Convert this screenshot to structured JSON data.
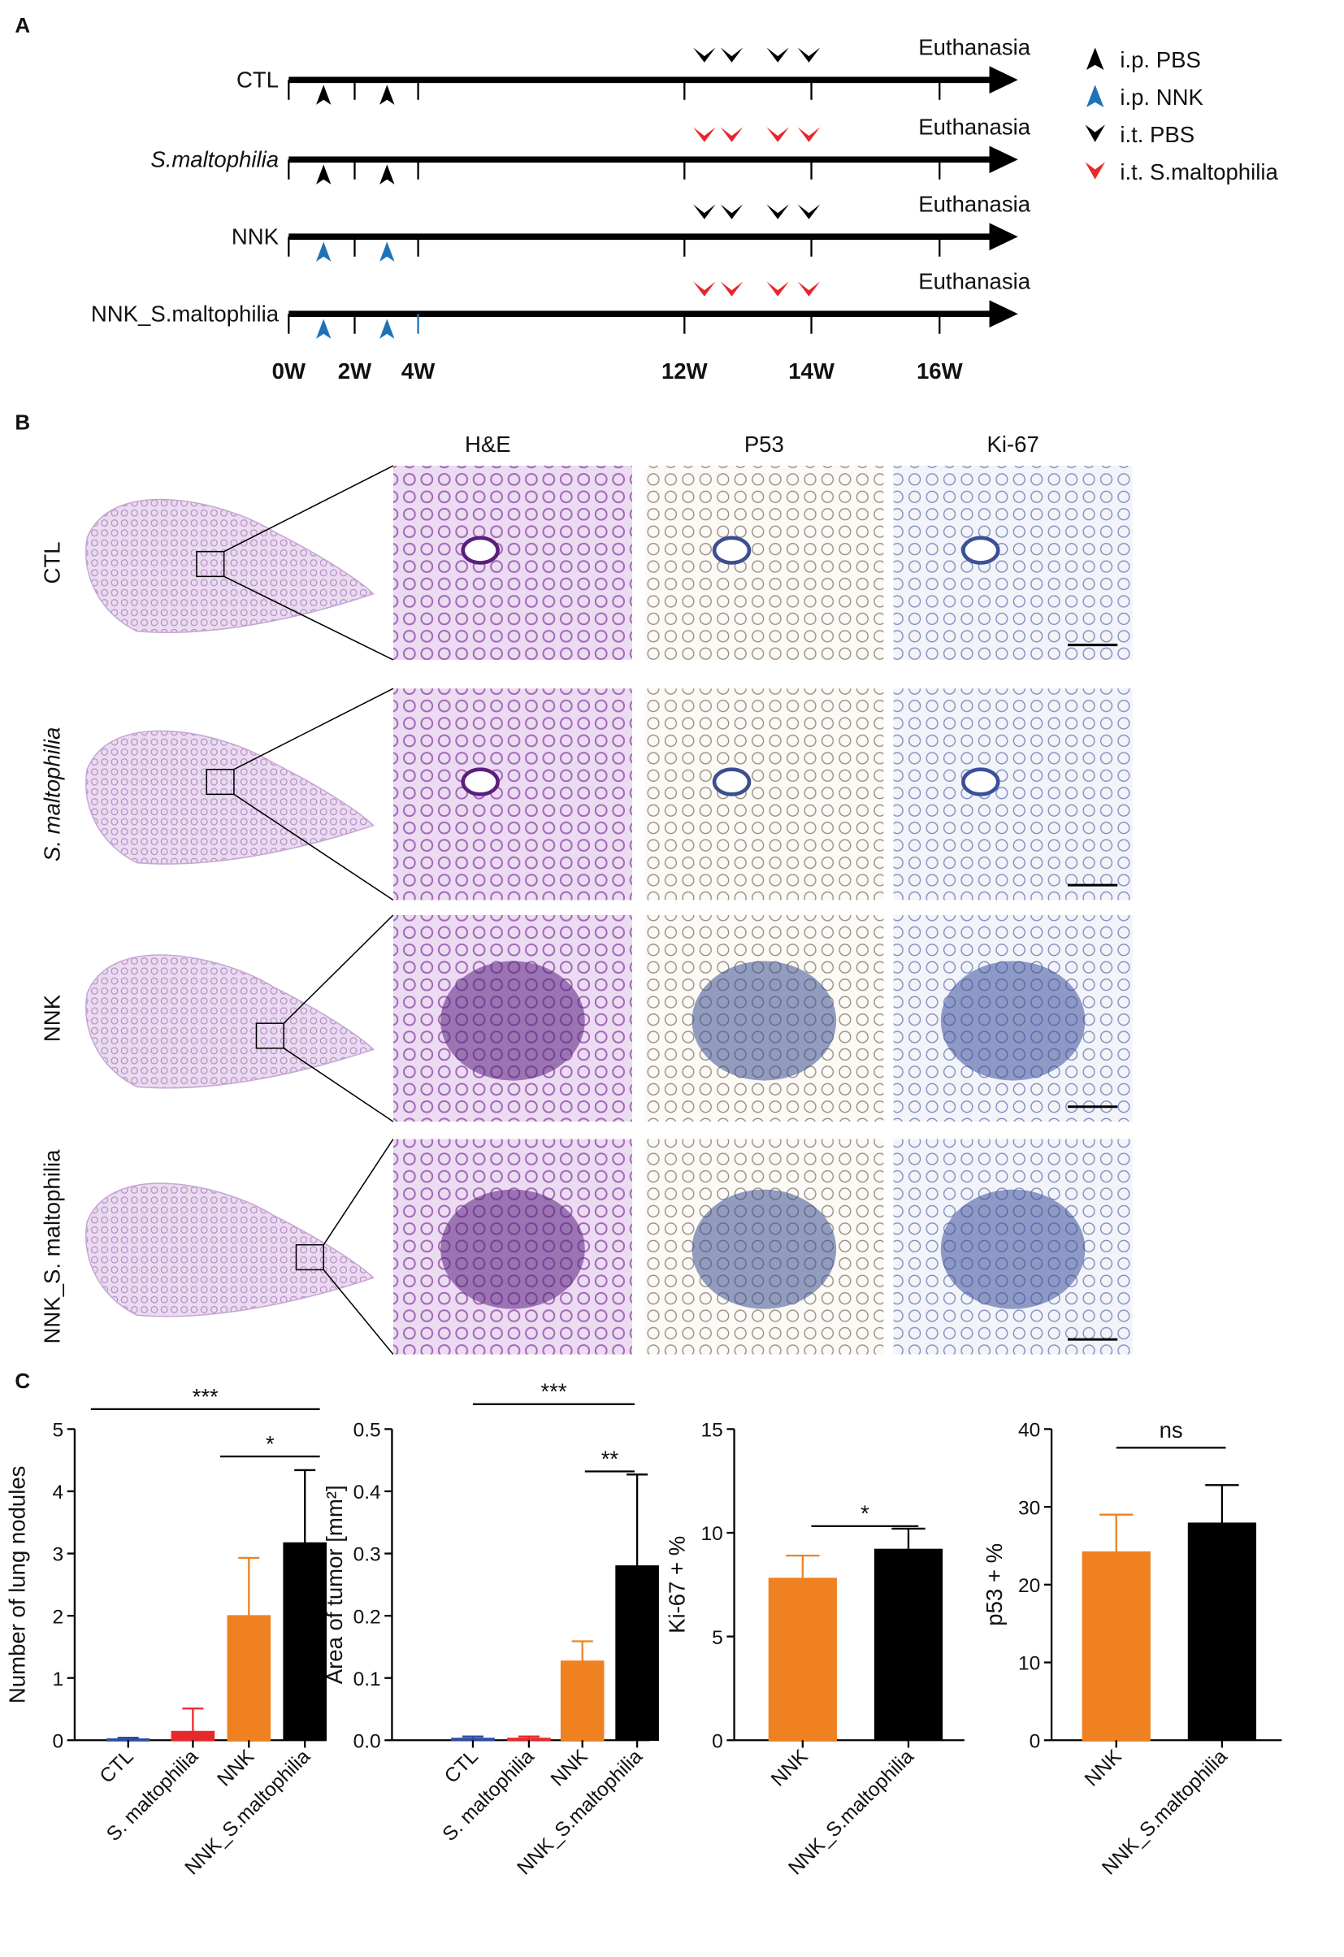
{
  "panel_labels": [
    "A",
    "B",
    "C"
  ],
  "timeline": {
    "rows": [
      {
        "label": "CTL",
        "end_label": "Euthanasia",
        "ip_color": "#000000",
        "it_color": "#000000"
      },
      {
        "label": "S.maltophilia",
        "end_label": "Euthanasia",
        "ip_color": "#000000",
        "it_color": "#e8262b"
      },
      {
        "label": "NNK",
        "end_label": "Euthanasia",
        "ip_color": "#1f72b8",
        "it_color": "#000000"
      },
      {
        "label": "NNK_S.maltophilia",
        "end_label": "Euthanasia",
        "ip_color": "#1f72b8",
        "it_color": "#e8262b"
      }
    ],
    "weeks": [
      "0W",
      "2W",
      "4W",
      "12W",
      "14W",
      "16W"
    ],
    "legend": [
      {
        "label": "i.p. PBS",
        "color": "#000000"
      },
      {
        "label": "i.p. NNK",
        "color": "#1f72b8"
      },
      {
        "label": "i.t. PBS",
        "color": "#000000"
      },
      {
        "label": "i.t. S.maltophilia",
        "color": "#e8262b"
      }
    ]
  },
  "histology": {
    "columns": [
      "H&E",
      "P53",
      "Ki-67"
    ],
    "rows": [
      "CTL",
      "S. maltophilia",
      "NNK",
      "NNK_S. maltophilia"
    ]
  },
  "chart_data": [
    {
      "type": "bar",
      "ylabel": "Number of lung nodules",
      "categories": [
        "CTL",
        "S. maltophilia",
        "NNK",
        "NNK_S.maltophilia"
      ],
      "values": [
        0.02,
        0.14,
        2.0,
        3.17
      ],
      "errors": [
        0.02,
        0.37,
        0.93,
        1.17
      ],
      "colors": [
        "#2c4ea0",
        "#e8282b",
        "#ef8121",
        "#000000"
      ],
      "ylim": [
        0,
        5
      ],
      "yticks": [
        0,
        1,
        2,
        3,
        4,
        5
      ],
      "annotations": [
        "***",
        "*"
      ]
    },
    {
      "type": "bar",
      "ylabel": "Area of tumor [mm²]",
      "categories": [
        "CTL",
        "S. maltophilia",
        "NNK",
        "NNK_S.maltophilia"
      ],
      "values": [
        0.003,
        0.003,
        0.127,
        0.28
      ],
      "errors": [
        0.003,
        0.003,
        0.032,
        0.147
      ],
      "colors": [
        "#2c4ea0",
        "#e8282b",
        "#ef8121",
        "#000000"
      ],
      "ylim": [
        0,
        0.5
      ],
      "yticks": [
        {
          "value": 0,
          "label": "0.0"
        },
        0.1,
        0.2,
        0.3,
        0.4,
        0.5
      ],
      "annotations": [
        "***",
        "**"
      ]
    },
    {
      "type": "bar",
      "ylabel": "Ki-67 + %",
      "categories": [
        "NNK",
        "NNK_S.maltophilia"
      ],
      "values": [
        7.8,
        9.2
      ],
      "errors": [
        1.1,
        1.0
      ],
      "colors": [
        "#ef8121",
        "#000000"
      ],
      "ylim": [
        0,
        15
      ],
      "yticks": [
        0,
        5,
        10,
        15
      ],
      "annotations": [
        "*"
      ]
    },
    {
      "type": "bar",
      "ylabel": "p53 + %",
      "categories": [
        "NNK",
        "NNK_S.maltophilia"
      ],
      "values": [
        24.2,
        27.9
      ],
      "errors": [
        4.8,
        4.9
      ],
      "colors": [
        "#ef8121",
        "#000000"
      ],
      "ylim": [
        0,
        40
      ],
      "yticks": [
        0,
        10,
        20,
        30,
        40
      ],
      "annotations": [
        "ns"
      ]
    }
  ]
}
